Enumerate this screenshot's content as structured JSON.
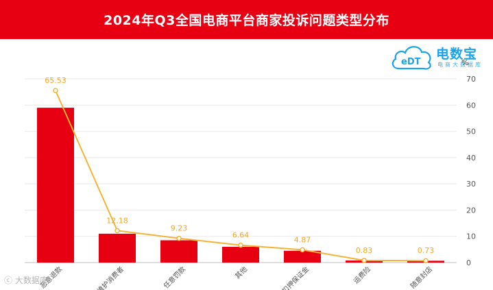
{
  "header": {
    "title": "2024年Q3全国电商平台商家投诉问题类型分布"
  },
  "logo": {
    "main_text": "电数宝",
    "sub_text": "电商大数据库",
    "cloud_text": "eDT"
  },
  "watermark": "大数据库",
  "unit_label": "%",
  "colors": {
    "header_bg": "#e60012",
    "bar": "#e60012",
    "line": "#f5b335",
    "label": "#f5a623",
    "logo": "#1aa3e8"
  },
  "chart_data": {
    "type": "bar",
    "categories": [
      "恶意退款",
      "仅维护消费者",
      "任意罚款",
      "其他",
      "扣押保证金",
      "运费险",
      "随意封店"
    ],
    "series": [
      {
        "type": "bar",
        "values": [
          59,
          11,
          8.5,
          6,
          4.5,
          0.8,
          0.7
        ]
      },
      {
        "type": "line",
        "values": [
          65.53,
          12.18,
          9.23,
          6.64,
          4.87,
          0.83,
          0.73
        ]
      }
    ],
    "data_labels": [
      "65.53",
      "12.18",
      "9.23",
      "6.64",
      "4.87",
      "0.83",
      "0.73"
    ],
    "y_ticks": [
      "0",
      "10",
      "20",
      "30",
      "40",
      "50",
      "60",
      "70"
    ],
    "ylim": [
      0,
      70
    ],
    "y_axis_position": "right",
    "grid": true,
    "legend": "none"
  }
}
